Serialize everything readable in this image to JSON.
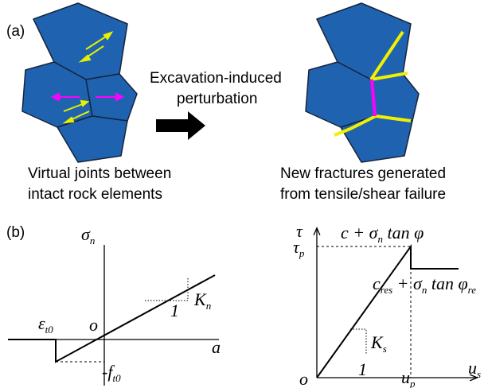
{
  "panel_a": {
    "label": "(a)",
    "arrow_text": [
      "Excavation-induced",
      "perturbation"
    ],
    "left_caption": [
      "Virtual joints between",
      "intact rock elements"
    ],
    "right_caption": [
      "New fractures generated",
      "from tensile/shear failure"
    ]
  },
  "panel_b": {
    "label": "(b)",
    "left_graph": {
      "y_axis": [
        {
          "text": "σ"
        },
        {
          "text": "n",
          "sub": true
        }
      ],
      "x_axis": [
        {
          "text": "a"
        }
      ],
      "strain": [
        {
          "text": "ε"
        },
        {
          "text": "t0",
          "sub": true
        }
      ],
      "origin": [
        {
          "text": "o"
        }
      ],
      "strength": [
        {
          "text": "-f"
        },
        {
          "text": "t0",
          "sub": true
        }
      ],
      "stiffness": [
        {
          "text": "K"
        },
        {
          "text": "n",
          "sub": true
        }
      ],
      "unit": [
        {
          "text": "1"
        }
      ]
    },
    "right_graph": {
      "y_axis": [
        {
          "text": "τ"
        }
      ],
      "peak": [
        {
          "text": "τ"
        },
        {
          "text": "p",
          "sub": true
        }
      ],
      "peak_formula": [
        {
          "text": "c + σ"
        },
        {
          "text": "n",
          "sub": true
        },
        {
          "text": " tan φ"
        }
      ],
      "residual_formula": [
        {
          "text": "c"
        },
        {
          "text": "res",
          "sub": true
        },
        {
          "text": " + σ"
        },
        {
          "text": "n",
          "sub": true
        },
        {
          "text": " tan φ"
        },
        {
          "text": "re",
          "sub": true
        }
      ],
      "stiffness": [
        {
          "text": "K"
        },
        {
          "text": "s",
          "sub": true
        }
      ],
      "unit": [
        {
          "text": "1"
        }
      ],
      "origin": [
        {
          "text": "o"
        }
      ],
      "peak_disp": [
        {
          "text": "u"
        },
        {
          "text": "p",
          "sub": true
        }
      ],
      "x_axis": [
        {
          "text": "u"
        },
        {
          "text": "s",
          "sub": true
        }
      ]
    }
  }
}
